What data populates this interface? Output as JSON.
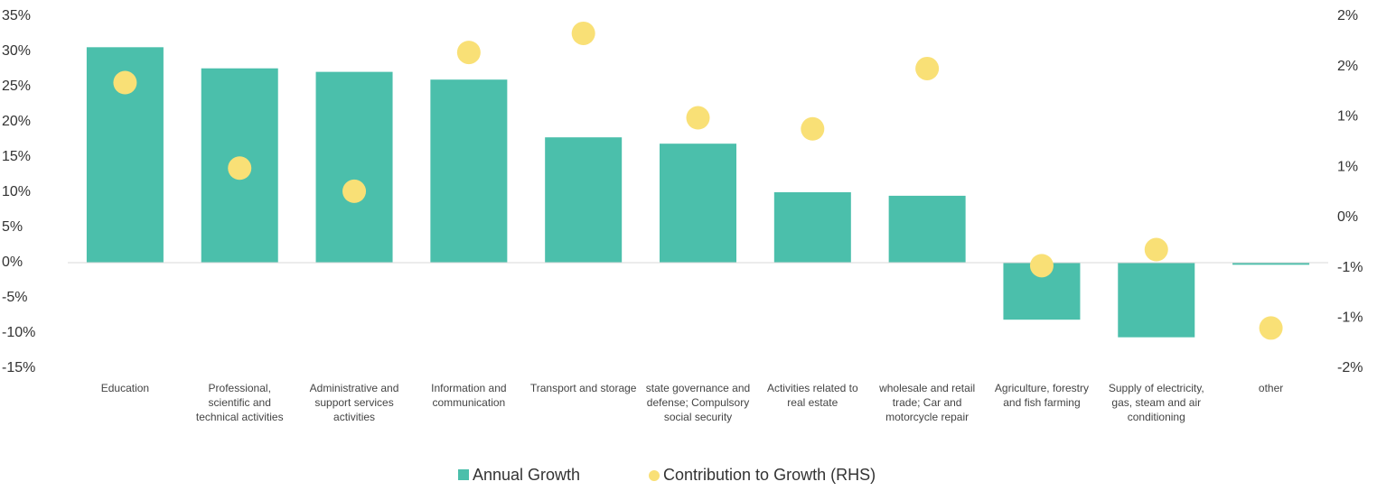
{
  "chart_data": {
    "type": "bar_dot",
    "categories": [
      "Education",
      "Professional, scientific and technical activities",
      "Administrative and support services activities",
      "Information and communication",
      "Transport and storage",
      "state governance and defense; Compulsory social security",
      "Activities related to real estate",
      "wholesale and retail trade; Car and motorcycle repair",
      "Agriculture, forestry and fish farming",
      "Supply of electricity, gas, steam and air conditioning",
      "other"
    ],
    "series": [
      {
        "name": "Annual Growth",
        "color": "#4bbfab",
        "values": [
          30.6,
          27.6,
          27.1,
          26.0,
          17.8,
          16.9,
          10.0,
          9.5,
          -8.1,
          -10.6,
          -0.3
        ]
      },
      {
        "name": "Contribution to Growth (RHS)",
        "color": "#f9e076",
        "axis": "y2",
        "values": [
          1.34,
          0.49,
          0.26,
          1.64,
          1.83,
          0.99,
          0.88,
          1.48,
          -0.48,
          -0.32,
          -1.1
        ]
      }
    ],
    "ylim": [
      -15,
      35
    ],
    "yticks": [
      {
        "value": 35,
        "label": "35%"
      },
      {
        "value": 30,
        "label": "30%"
      },
      {
        "value": 25,
        "label": "25%"
      },
      {
        "value": 20,
        "label": "20%"
      },
      {
        "value": 15,
        "label": "15%"
      },
      {
        "value": 10,
        "label": "10%"
      },
      {
        "value": 5,
        "label": "5%"
      },
      {
        "value": 0,
        "label": "0%"
      },
      {
        "value": -5,
        "label": "-5%"
      },
      {
        "value": -10,
        "label": "-10%"
      },
      {
        "value": -15,
        "label": "-15%"
      }
    ],
    "y2lim": [
      -1.5,
      2.0
    ],
    "y2ticks": [
      {
        "value": 2.0,
        "label": "2%"
      },
      {
        "value": 1.5,
        "label": "2%"
      },
      {
        "value": 1.0,
        "label": "1%"
      },
      {
        "value": 0.5,
        "label": "1%"
      },
      {
        "value": 0.0,
        "label": "0%"
      },
      {
        "value": -0.5,
        "label": "-1%"
      },
      {
        "value": -1.0,
        "label": "-1%"
      },
      {
        "value": -1.5,
        "label": "-2%"
      }
    ],
    "legend": "bottom"
  }
}
